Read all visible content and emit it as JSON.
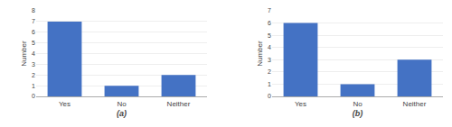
{
  "chart_data": [
    {
      "type": "bar",
      "categories": [
        "Yes",
        "No",
        "Neither"
      ],
      "values": [
        7,
        1,
        2
      ],
      "color": "#4472C4",
      "ylim": [
        0,
        8
      ],
      "yticks": [
        0,
        1,
        2,
        3,
        4,
        5,
        6,
        7,
        8
      ],
      "xlabel": "(a)",
      "ylabel": "Number",
      "grid": true
    },
    {
      "type": "bar",
      "categories": [
        "Yes",
        "No",
        "Neither"
      ],
      "values": [
        6,
        1,
        3
      ],
      "color": "#4472C4",
      "ylim": [
        0,
        7
      ],
      "yticks": [
        0,
        1,
        2,
        3,
        4,
        5,
        6,
        7
      ],
      "xlabel": "(b)",
      "ylabel": "Number",
      "grid": true
    }
  ]
}
